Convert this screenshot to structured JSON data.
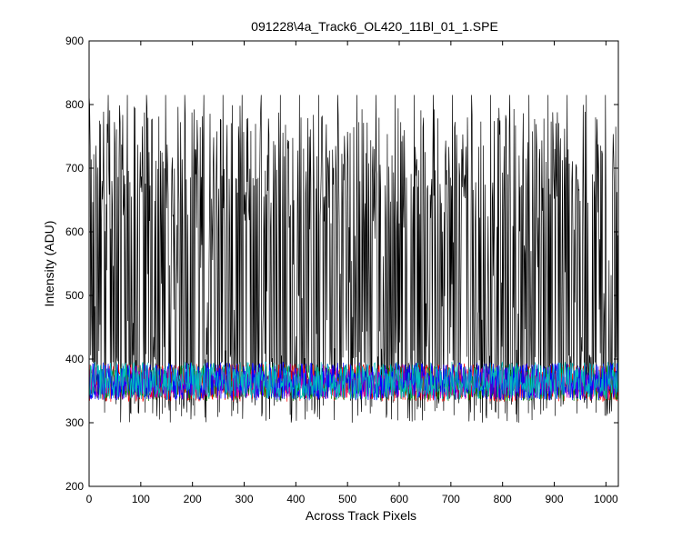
{
  "chart_data": {
    "type": "line",
    "title": "091228\\4a_Track6_OL420_11Bl_01_1.SPE",
    "xlabel": "Across Track Pixels",
    "ylabel": "Intensity (ADU)",
    "xlim": [
      0,
      1024
    ],
    "ylim": [
      200,
      900
    ],
    "xticks": [
      "0",
      "100",
      "200",
      "300",
      "400",
      "500",
      "600",
      "700",
      "800",
      "900",
      "1000"
    ],
    "yticks": [
      "200",
      "300",
      "400",
      "500",
      "600",
      "700",
      "800",
      "900"
    ],
    "grid": false,
    "legend": "none",
    "series": [
      {
        "color": "#000000",
        "baseline": 555,
        "amplitude": 275,
        "points": 1024,
        "style": "high-variance"
      },
      {
        "color": "#ff0000",
        "baseline": 363,
        "amplitude": 30,
        "points": 1024,
        "style": "noise"
      },
      {
        "color": "#008000",
        "baseline": 362,
        "amplitude": 28,
        "points": 1024,
        "style": "noise"
      },
      {
        "color": "#bf00bf",
        "baseline": 362,
        "amplitude": 25,
        "points": 1024,
        "style": "noise"
      },
      {
        "color": "#0000ff",
        "baseline": 365,
        "amplitude": 30,
        "points": 1024,
        "style": "noise"
      },
      {
        "color": "#00bfbf",
        "baseline": 366,
        "amplitude": 30,
        "points": 1024,
        "style": "noise"
      }
    ]
  }
}
